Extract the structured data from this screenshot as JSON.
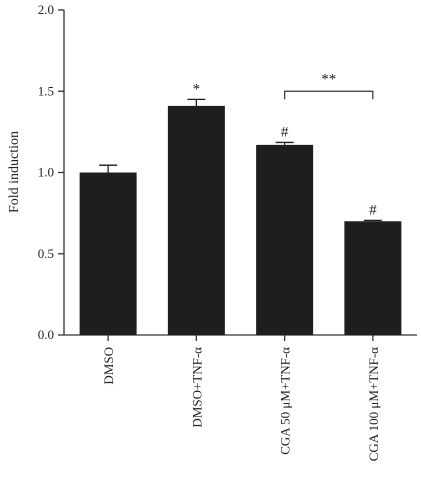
{
  "chart_data": {
    "type": "bar",
    "ylabel": "Fold induction",
    "ylim": [
      0,
      2.0
    ],
    "yticks": [
      "0.0",
      "0.5",
      "1.0",
      "1.5",
      "2.0"
    ],
    "categories": [
      "DMSO",
      "DMSO+TNF-α",
      "CGA 50 μM+TNF-α",
      "CGA 100 μM+TNF-α"
    ],
    "values": [
      1.0,
      1.41,
      1.17,
      0.7
    ],
    "errors": [
      0.045,
      0.04,
      0.015,
      0.005
    ],
    "bar_annotations": [
      "",
      "*",
      "#",
      "#"
    ],
    "bracket": {
      "from": 2,
      "to": 3,
      "label": "**",
      "y": 1.5
    },
    "grid": false,
    "colors": {
      "bar": "#1e1e1e",
      "axis": "#333333"
    }
  }
}
